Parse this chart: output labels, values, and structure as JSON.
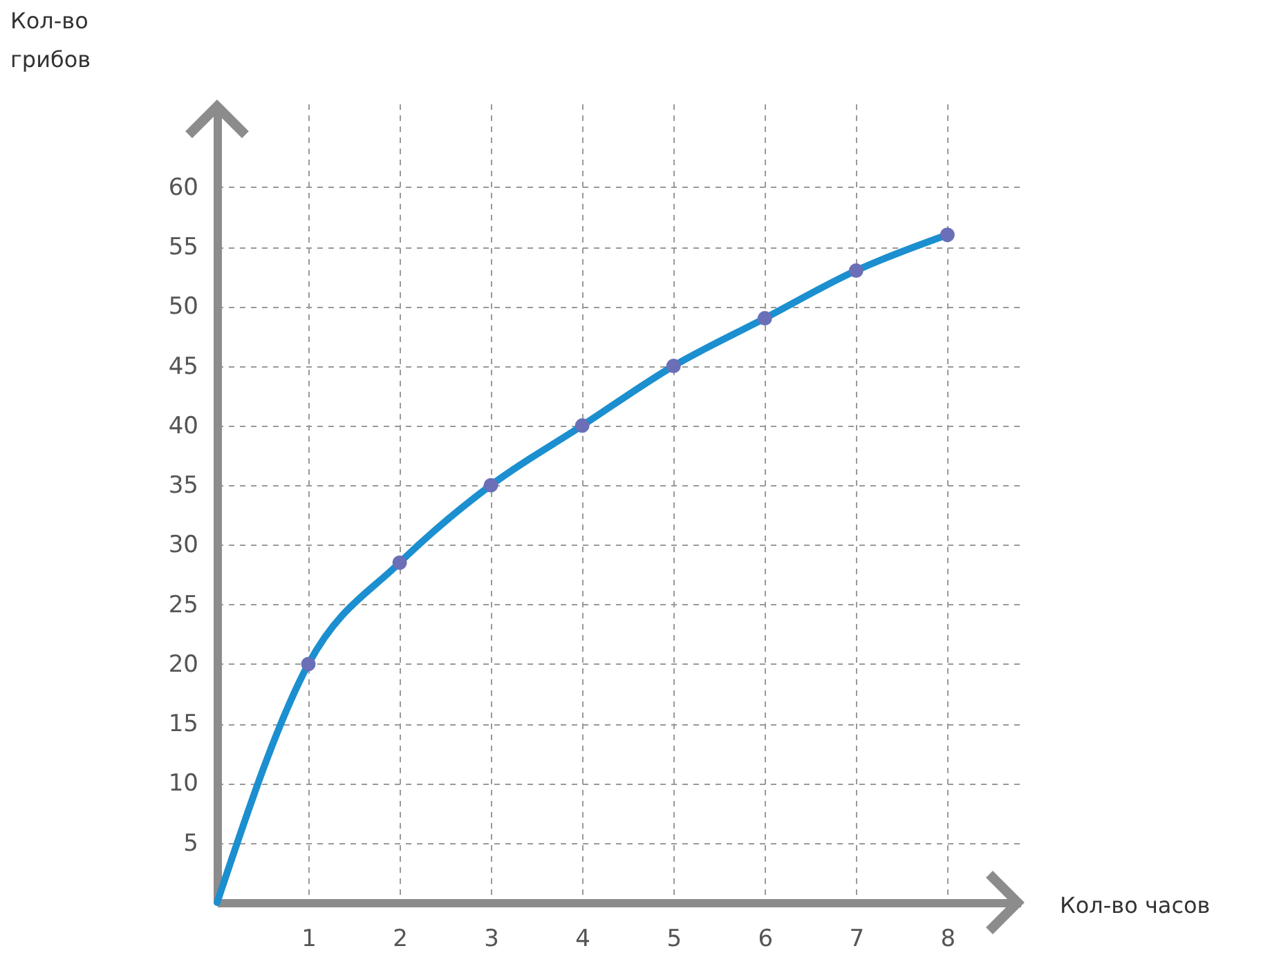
{
  "chart_data": {
    "type": "line",
    "xlabel": "Кол-во часов",
    "ylabel": "Кол-во грибов",
    "xlim": [
      0,
      8.8
    ],
    "xticks": [
      1,
      2,
      3,
      4,
      5,
      6,
      7,
      8
    ],
    "ylim": [
      0,
      67
    ],
    "yticks": [
      5,
      10,
      15,
      20,
      25,
      30,
      35,
      40,
      45,
      50,
      55,
      60
    ],
    "grid": true,
    "series": [
      {
        "color": "#1b8fcf",
        "marker": "none",
        "x": [
          0,
          1,
          2,
          3,
          4,
          5,
          6,
          7,
          8
        ],
        "values": [
          0,
          20,
          28.5,
          35,
          40,
          45,
          49,
          53,
          56
        ]
      },
      {
        "type": "scatter",
        "color": "#6a6fb8",
        "marker": "circle",
        "x": [
          1,
          2,
          3,
          4,
          5,
          6,
          7,
          8
        ],
        "values": [
          20,
          28.5,
          35,
          40,
          45,
          49,
          53,
          56
        ]
      }
    ]
  }
}
